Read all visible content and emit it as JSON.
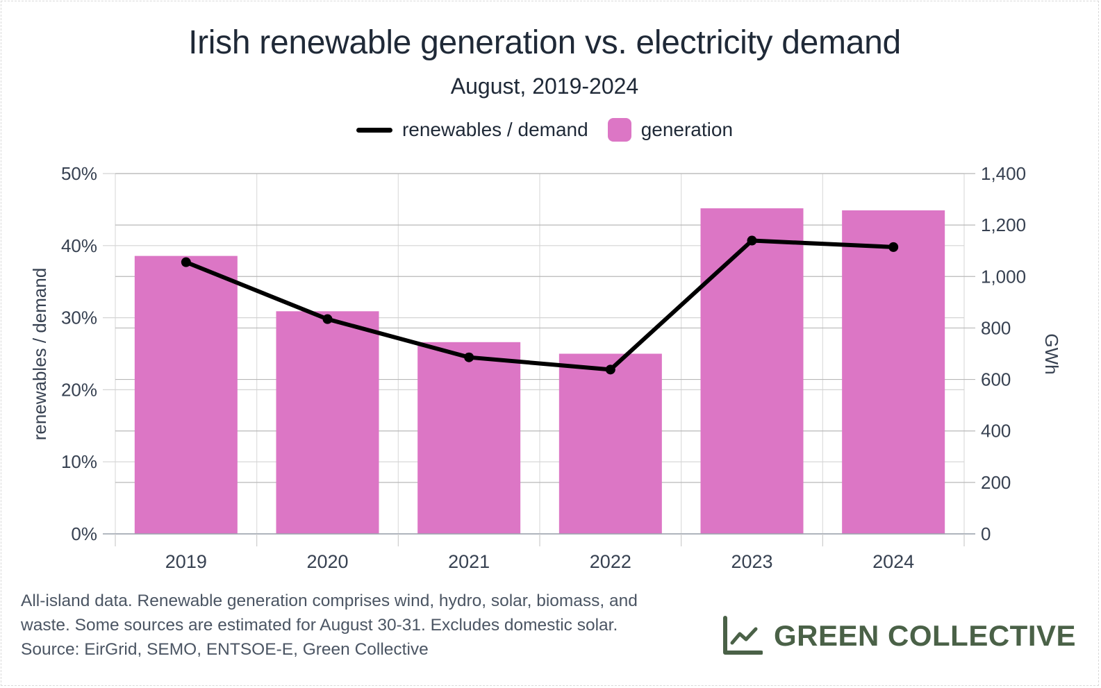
{
  "header": {
    "title": "Irish renewable generation vs. electricity demand",
    "subtitle": "August, 2019-2024"
  },
  "legend": {
    "line_label": "renewables / demand",
    "bar_label": "generation"
  },
  "footnote": {
    "line1": "All-island data. Renewable generation comprises wind, hydro, solar, biomass, and",
    "line2": "waste. Some sources are estimated for August 30-31. Excludes domestic solar.",
    "line3": "Source: EirGrid, SEMO, ENTSOE-E, Green Collective"
  },
  "brand": {
    "name": "GREEN COLLECTIVE",
    "icon": "line-chart-icon",
    "color": "#4a6147"
  },
  "colors": {
    "bar": "#dc76c5",
    "line": "#000000",
    "grid": "#cccccc",
    "text": "#1f2937"
  },
  "chart_data": {
    "type": "bar",
    "categories": [
      "2019",
      "2020",
      "2021",
      "2022",
      "2023",
      "2024"
    ],
    "series": [
      {
        "name": "generation",
        "type": "bar",
        "axis": "right",
        "values": [
          1080,
          865,
          745,
          700,
          1265,
          1257
        ]
      },
      {
        "name": "renewables / demand",
        "type": "line",
        "axis": "left",
        "values": [
          37.7,
          29.8,
          24.5,
          22.8,
          40.7,
          39.8
        ]
      }
    ],
    "ylabel_left": "renewables / demand",
    "ylabel_right": "GWh",
    "ylim_left": [
      0,
      50
    ],
    "ylim_right": [
      0,
      1400
    ],
    "yticks_left": [
      "0%",
      "10%",
      "20%",
      "30%",
      "40%",
      "50%"
    ],
    "yticks_right": [
      "0",
      "200",
      "400",
      "600",
      "800",
      "1,000",
      "1,200",
      "1,400"
    ],
    "grid": true,
    "legend_position": "top"
  }
}
